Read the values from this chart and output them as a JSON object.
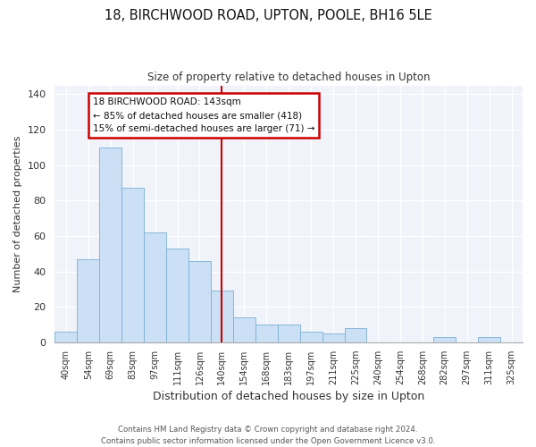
{
  "title": "18, BIRCHWOOD ROAD, UPTON, POOLE, BH16 5LE",
  "subtitle": "Size of property relative to detached houses in Upton",
  "xlabel": "Distribution of detached houses by size in Upton",
  "ylabel": "Number of detached properties",
  "bar_labels": [
    "40sqm",
    "54sqm",
    "69sqm",
    "83sqm",
    "97sqm",
    "111sqm",
    "126sqm",
    "140sqm",
    "154sqm",
    "168sqm",
    "183sqm",
    "197sqm",
    "211sqm",
    "225sqm",
    "240sqm",
    "254sqm",
    "268sqm",
    "282sqm",
    "297sqm",
    "311sqm",
    "325sqm"
  ],
  "bar_values": [
    6,
    47,
    110,
    87,
    62,
    53,
    46,
    29,
    14,
    10,
    10,
    6,
    5,
    8,
    0,
    0,
    0,
    3,
    0,
    3,
    0
  ],
  "bar_color": "#cce0f5",
  "bar_edge_color": "#7aafd4",
  "vline_x_index": 7,
  "vline_color": "#cc0000",
  "ylim": [
    0,
    145
  ],
  "yticks": [
    0,
    20,
    40,
    60,
    80,
    100,
    120,
    140
  ],
  "annotation_title": "18 BIRCHWOOD ROAD: 143sqm",
  "annotation_line1": "← 85% of detached houses are smaller (418)",
  "annotation_line2": "15% of semi-detached houses are larger (71) →",
  "annotation_box_color": "#ffffff",
  "annotation_box_edge": "#cc0000",
  "footer1": "Contains HM Land Registry data © Crown copyright and database right 2024.",
  "footer2": "Contains public sector information licensed under the Open Government Licence v3.0.",
  "bg_color": "#f0f4fa"
}
